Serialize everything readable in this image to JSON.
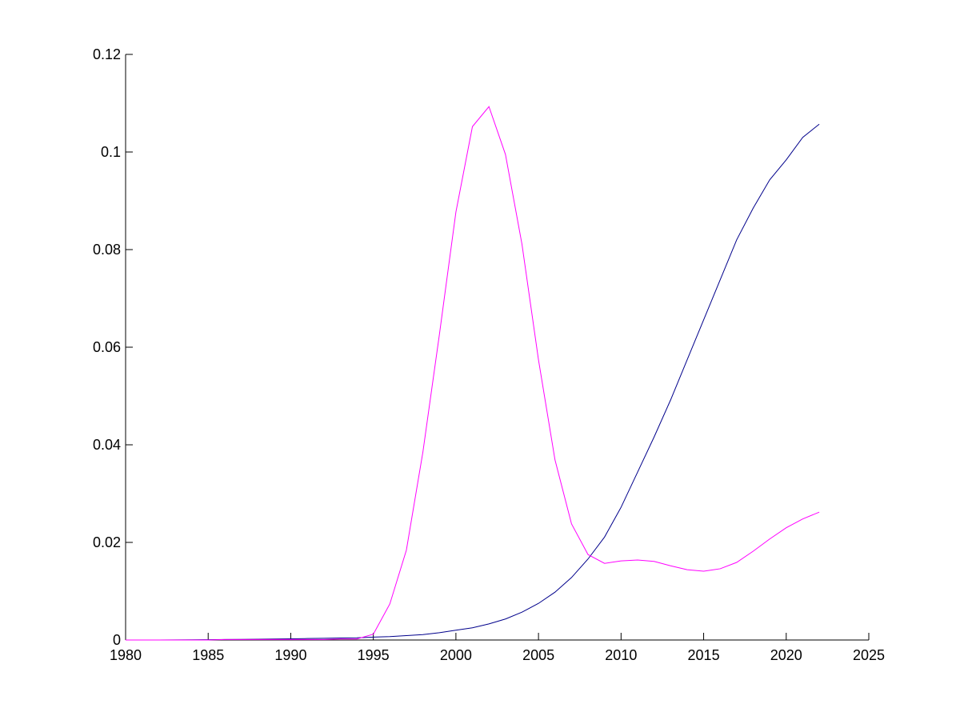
{
  "chart_data": {
    "type": "line",
    "x": [
      1980,
      1981,
      1982,
      1983,
      1984,
      1985,
      1986,
      1987,
      1988,
      1989,
      1990,
      1991,
      1992,
      1993,
      1994,
      1995,
      1996,
      1997,
      1998,
      1999,
      2000,
      2001,
      2002,
      2003,
      2004,
      2005,
      2006,
      2007,
      2008,
      2009,
      2010,
      2011,
      2012,
      2013,
      2014,
      2015,
      2016,
      2017,
      2018,
      2019,
      2020,
      2021,
      2022
    ],
    "series": [
      {
        "color": "#00008b",
        "values": [
          0,
          0,
          0,
          2e-05,
          4e-05,
          6e-05,
          0.0001,
          0.00013,
          0.00016,
          0.0002,
          0.00025,
          0.0003,
          0.00035,
          0.0004,
          0.00045,
          0.0006,
          0.0007,
          0.0009,
          0.0011,
          0.0015,
          0.002,
          0.0025,
          0.0033,
          0.0043,
          0.0057,
          0.0075,
          0.0098,
          0.0128,
          0.0166,
          0.0211,
          0.0272,
          0.0344,
          0.0416,
          0.0492,
          0.0574,
          0.0656,
          0.0738,
          0.082,
          0.0885,
          0.0943,
          0.0984,
          0.103,
          0.1057
        ]
      },
      {
        "color": "#ff00ff",
        "values": [
          0,
          0,
          0,
          0,
          0,
          0,
          0.0001,
          0.0001,
          0.0001,
          0.0001,
          0.0001,
          0.0001,
          0.0001,
          0.0002,
          0.0002,
          0.0012,
          0.0074,
          0.0184,
          0.0385,
          0.0626,
          0.0877,
          0.1052,
          0.1093,
          0.0995,
          0.0811,
          0.0574,
          0.0369,
          0.0238,
          0.0175,
          0.0157,
          0.0162,
          0.0164,
          0.0161,
          0.0152,
          0.0144,
          0.0141,
          0.0146,
          0.0159,
          0.0182,
          0.0207,
          0.023,
          0.0248,
          0.0262
        ]
      }
    ],
    "xlim": [
      1980,
      2025
    ],
    "xticks": [
      1980,
      1985,
      1990,
      1995,
      2000,
      2005,
      2010,
      2015,
      2020,
      2025
    ],
    "ylim": [
      0,
      0.12
    ],
    "yticks": [
      0,
      0.02,
      0.04,
      0.06,
      0.08,
      0.1,
      0.12
    ]
  }
}
